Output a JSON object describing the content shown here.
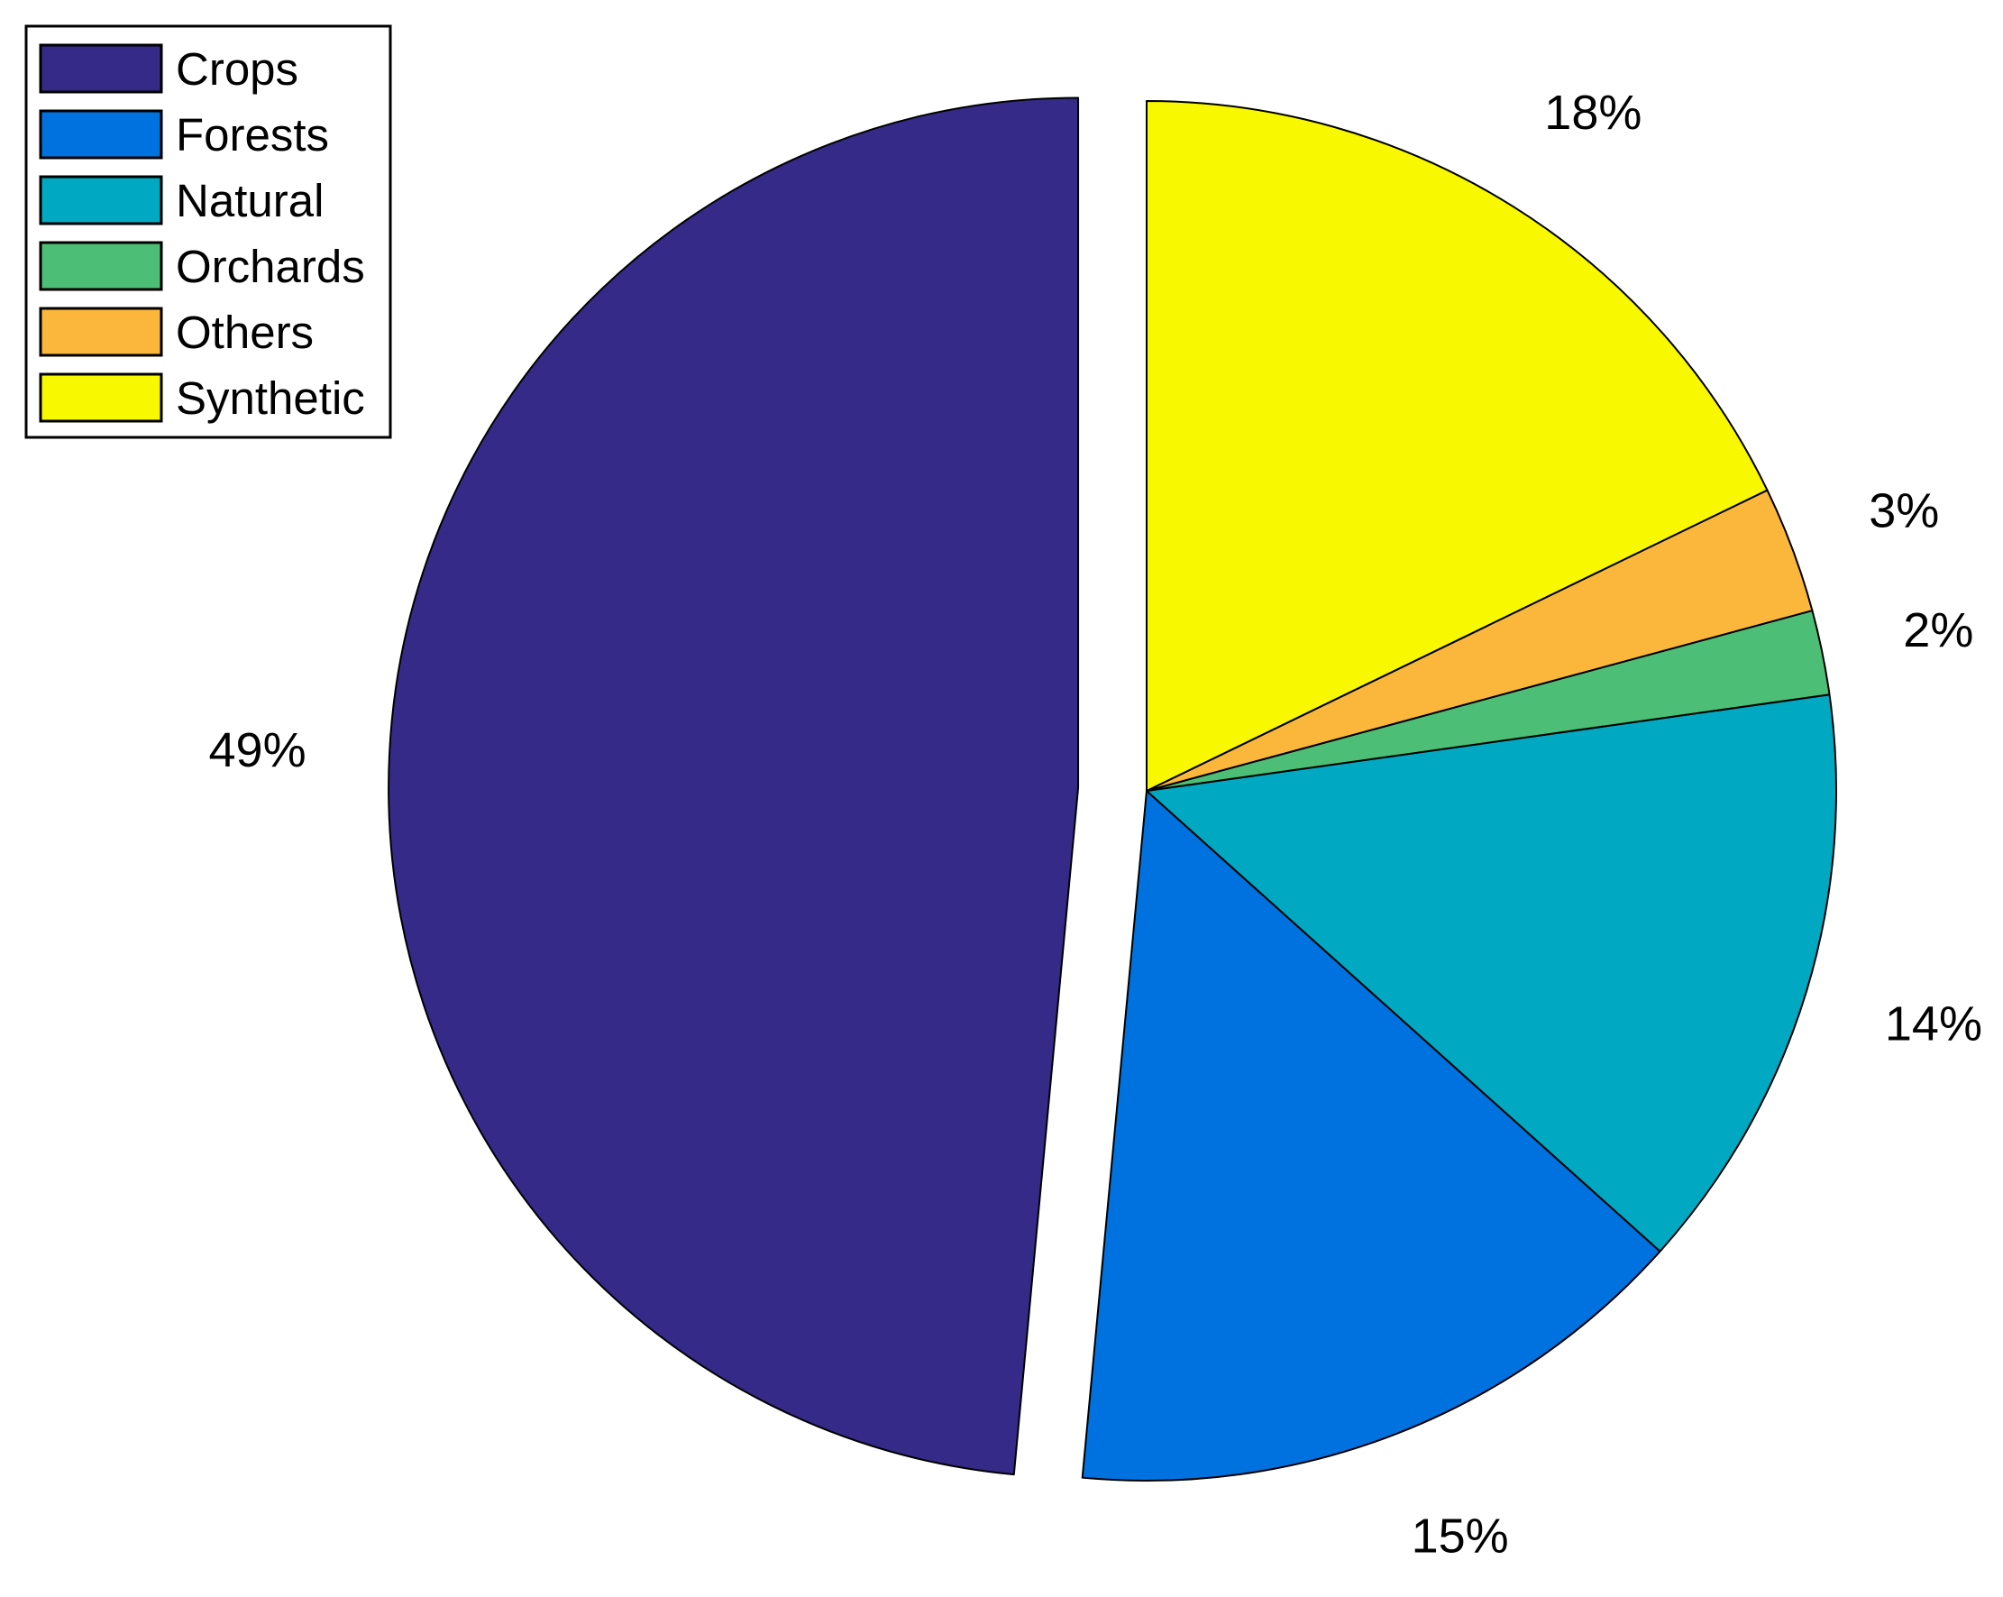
{
  "chart_data": {
    "type": "pie",
    "categories": [
      "Crops",
      "Forests",
      "Natural",
      "Orchards",
      "Others",
      "Synthetic"
    ],
    "values": [
      49,
      15,
      14,
      2,
      3,
      18
    ],
    "labels": [
      "49%",
      "15%",
      "14%",
      "2%",
      "3%",
      "18%"
    ],
    "colors": [
      "#352a87",
      "#0072e0",
      "#00a9c1",
      "#4cbe75",
      "#fbb63c",
      "#f8f800"
    ],
    "exploded": [
      "Crops"
    ],
    "legend": {
      "position": "top-left",
      "entries": [
        "Crops",
        "Forests",
        "Natural",
        "Orchards",
        "Others",
        "Synthetic"
      ]
    },
    "title": "",
    "xlabel": "",
    "ylabel": ""
  }
}
